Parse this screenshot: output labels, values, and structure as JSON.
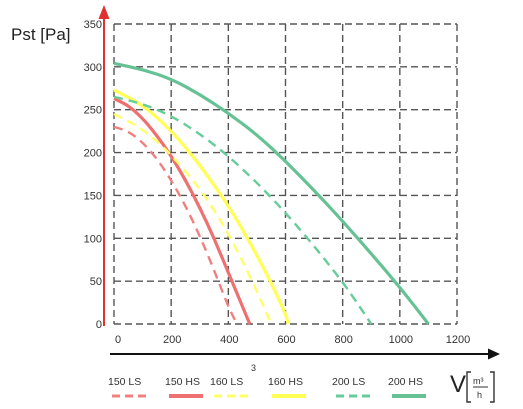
{
  "chart_data": {
    "type": "line",
    "title": "",
    "ylabel": "Pst [Pa]",
    "xlabel": "V",
    "xlabel_unit_numerator": "m³",
    "xlabel_unit_denominator": "h",
    "x_axis_extra_label": "3",
    "xlim": [
      0,
      1200
    ],
    "ylim": [
      0,
      350
    ],
    "xticks": [
      0,
      200,
      400,
      600,
      800,
      1000,
      1200
    ],
    "yticks": [
      0,
      50,
      100,
      150,
      200,
      250,
      300,
      350
    ],
    "grid": true,
    "legend_position": "bottom",
    "series": [
      {
        "name": "150 LS",
        "color": "#f08080",
        "dashed": true,
        "points": [
          [
            0,
            230
          ],
          [
            50,
            225
          ],
          [
            100,
            212
          ],
          [
            150,
            193
          ],
          [
            200,
            168
          ],
          [
            250,
            138
          ],
          [
            300,
            103
          ],
          [
            350,
            63
          ],
          [
            400,
            20
          ],
          [
            430,
            0
          ]
        ]
      },
      {
        "name": "150 HS",
        "color": "#ee7070",
        "dashed": false,
        "points": [
          [
            0,
            263
          ],
          [
            50,
            255
          ],
          [
            100,
            240
          ],
          [
            150,
            220
          ],
          [
            200,
            196
          ],
          [
            250,
            168
          ],
          [
            300,
            136
          ],
          [
            350,
            100
          ],
          [
            400,
            60
          ],
          [
            450,
            20
          ],
          [
            475,
            0
          ]
        ]
      },
      {
        "name": "160 LS",
        "color": "#ffff66",
        "dashed": true,
        "points": [
          [
            0,
            245
          ],
          [
            100,
            228
          ],
          [
            200,
            198
          ],
          [
            300,
            158
          ],
          [
            350,
            133
          ],
          [
            400,
            105
          ],
          [
            450,
            73
          ],
          [
            500,
            38
          ],
          [
            540,
            8
          ],
          [
            550,
            0
          ]
        ]
      },
      {
        "name": "160 HS",
        "color": "#ffff55",
        "dashed": false,
        "points": [
          [
            0,
            273
          ],
          [
            100,
            256
          ],
          [
            200,
            226
          ],
          [
            300,
            186
          ],
          [
            400,
            138
          ],
          [
            450,
            110
          ],
          [
            500,
            80
          ],
          [
            550,
            48
          ],
          [
            600,
            12
          ],
          [
            610,
            0
          ]
        ]
      },
      {
        "name": "200 LS",
        "color": "#66cc99",
        "dashed": true,
        "points": [
          [
            0,
            265
          ],
          [
            100,
            257
          ],
          [
            200,
            243
          ],
          [
            300,
            222
          ],
          [
            400,
            196
          ],
          [
            500,
            165
          ],
          [
            600,
            130
          ],
          [
            700,
            91
          ],
          [
            800,
            49
          ],
          [
            860,
            20
          ],
          [
            900,
            0
          ]
        ]
      },
      {
        "name": "200 HS",
        "color": "#66c294",
        "dashed": false,
        "points": [
          [
            0,
            304
          ],
          [
            100,
            297
          ],
          [
            200,
            286
          ],
          [
            300,
            268
          ],
          [
            400,
            246
          ],
          [
            500,
            221
          ],
          [
            600,
            190
          ],
          [
            700,
            156
          ],
          [
            800,
            120
          ],
          [
            900,
            82
          ],
          [
            1000,
            43
          ],
          [
            1100,
            0
          ]
        ]
      }
    ]
  }
}
